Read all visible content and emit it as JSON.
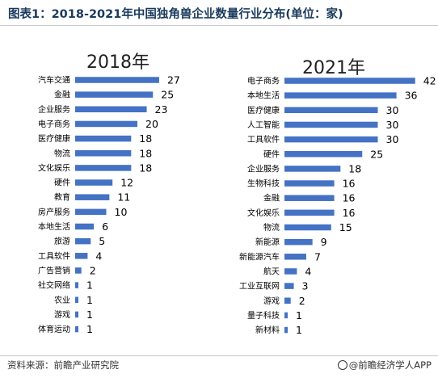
{
  "title": "图表1：2018-2021年中国独角兽企业数量行业分布(单位：家)",
  "source": "资料来源：前瞻产业研究院",
  "credit": "@前瞻经济学人APP",
  "colors": {
    "bar": "#4472c4",
    "title": "#1a3a5c"
  },
  "chart_data": [
    {
      "type": "bar",
      "orientation": "horizontal",
      "title": "2018年",
      "categories": [
        "汽车交通",
        "金融",
        "企业服务",
        "电子商务",
        "医疗健康",
        "物流",
        "文化娱乐",
        "硬件",
        "教育",
        "房产服务",
        "本地生活",
        "旅游",
        "工具软件",
        "广告营销",
        "社交网络",
        "农业",
        "游戏",
        "体育运动"
      ],
      "values": [
        27,
        25,
        23,
        20,
        18,
        18,
        18,
        12,
        11,
        10,
        6,
        5,
        4,
        2,
        1,
        1,
        1,
        1
      ]
    },
    {
      "type": "bar",
      "orientation": "horizontal",
      "title": "2021年",
      "categories": [
        "电子商务",
        "本地生活",
        "医疗健康",
        "人工智能",
        "工具软件",
        "硬件",
        "企业服务",
        "生物科技",
        "金融",
        "文化娱乐",
        "物流",
        "新能源",
        "新能源汽车",
        "航天",
        "工业互联网",
        "游戏",
        "量子科技",
        "新材料"
      ],
      "values": [
        42,
        36,
        30,
        30,
        30,
        25,
        18,
        16,
        16,
        16,
        15,
        9,
        7,
        4,
        3,
        2,
        1,
        1
      ]
    }
  ]
}
